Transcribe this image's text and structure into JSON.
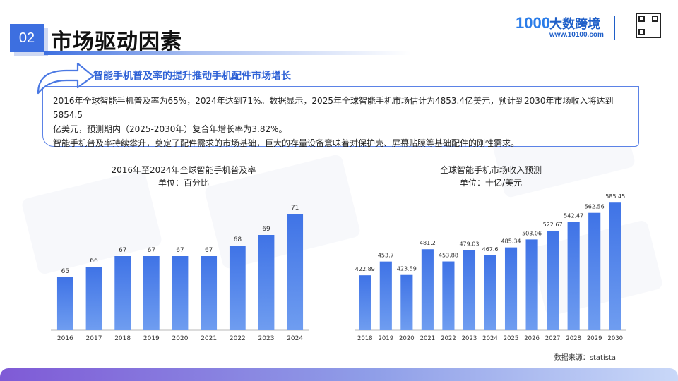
{
  "header": {
    "section_number": "02",
    "title": "市场驱动因素"
  },
  "logo": {
    "mark": "1000",
    "name": "大数跨境",
    "url": "www.10100.com",
    "icons": [
      "logo-mark-icon",
      "qr-code-icon"
    ]
  },
  "subtitle": "智能手机普及率的提升推动手机配件市场增长",
  "description": {
    "lines": [
      "2016年全球智能手机普及率为65%，2024年达到71%。数据显示，2025年全球智能手机市场估计为4853.4亿美元，预计到2030年市场收入将达到5854.5",
      "亿美元，预测期内（2025-2030年）复合年增长率为3.82%。",
      "智能手机普及率持续攀升，奠定了配件需求的市场基础，巨大的存量设备意味着对保护壳、屏幕贴膜等基础配件的刚性需求。"
    ]
  },
  "chart_data": [
    {
      "type": "bar",
      "title": "2016年至2024年全球智能手机普及率",
      "subtitle": "单位：百分比",
      "categories": [
        "2016",
        "2017",
        "2018",
        "2019",
        "2020",
        "2021",
        "2022",
        "2023",
        "2024"
      ],
      "values": [
        65,
        66,
        67,
        67,
        67,
        67,
        68,
        69,
        71
      ],
      "value_labels": [
        "65",
        "66",
        "67",
        "67",
        "67",
        "67",
        "68",
        "69",
        "71"
      ],
      "ylim": [
        60,
        72
      ],
      "grid": false,
      "bar_color": "#4a7ee8"
    },
    {
      "type": "bar",
      "title": "全球智能手机市场收入预测",
      "subtitle": "单位：十亿/美元",
      "categories": [
        "2018",
        "2019",
        "2020",
        "2021",
        "2022",
        "2023",
        "2024",
        "2025",
        "2026",
        "2027",
        "2028",
        "2029",
        "2030"
      ],
      "values": [
        422.89,
        453.7,
        423.59,
        481.2,
        453.88,
        479.03,
        467.6,
        485.34,
        503.06,
        522.67,
        542.47,
        562.56,
        585.45
      ],
      "value_labels": [
        "422.89",
        "453.7",
        "423.59",
        "481.2",
        "453.88",
        "479.03",
        "467.6",
        "485.34",
        "503.06",
        "522.67",
        "542.47",
        "562.56",
        "585.45"
      ],
      "ylim": [
        300,
        600
      ],
      "grid": false,
      "bar_color": "#4a7ee8"
    }
  ],
  "source": "数据来源：statista",
  "colors": {
    "accent": "#3d6fe0",
    "bar_top": "#3f73e6",
    "bar_bottom": "#6f9df0",
    "subtitle": "#2f62d6"
  }
}
